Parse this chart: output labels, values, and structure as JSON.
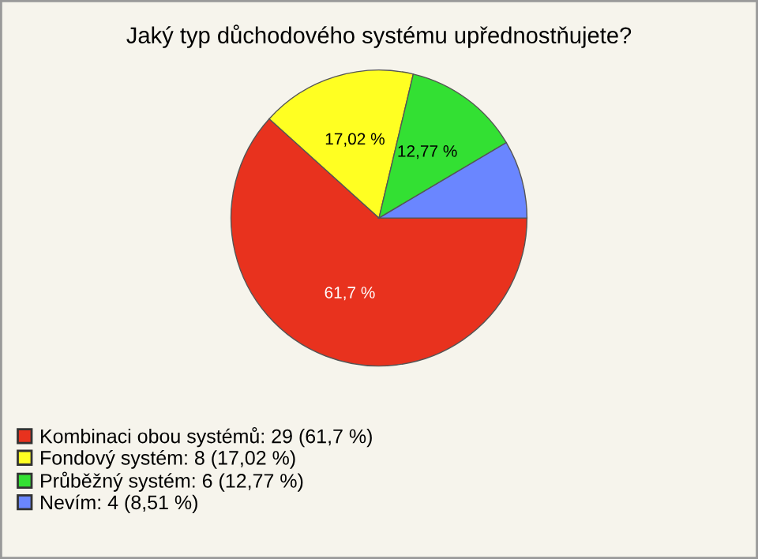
{
  "chart_data": {
    "type": "pie",
    "title": "Jaký typ důchodového systému upřednostňujete?",
    "categories": [
      "Kombinaci obou systémů: 29 (61,7 %)",
      "Fondový systém: 8 (17,02 %)",
      "Průběžný systém: 6 (12,77 %)",
      "Nevím: 4 (8,51 %)"
    ],
    "values": [
      61.7,
      17.02,
      12.77,
      8.51
    ],
    "colors": [
      "#e8321e",
      "#ffff22",
      "#33e033",
      "#6a86ff"
    ],
    "value_labels": [
      "61,7 %",
      "17,02 %",
      "12,77 %",
      null
    ],
    "legend": "bottom left"
  }
}
